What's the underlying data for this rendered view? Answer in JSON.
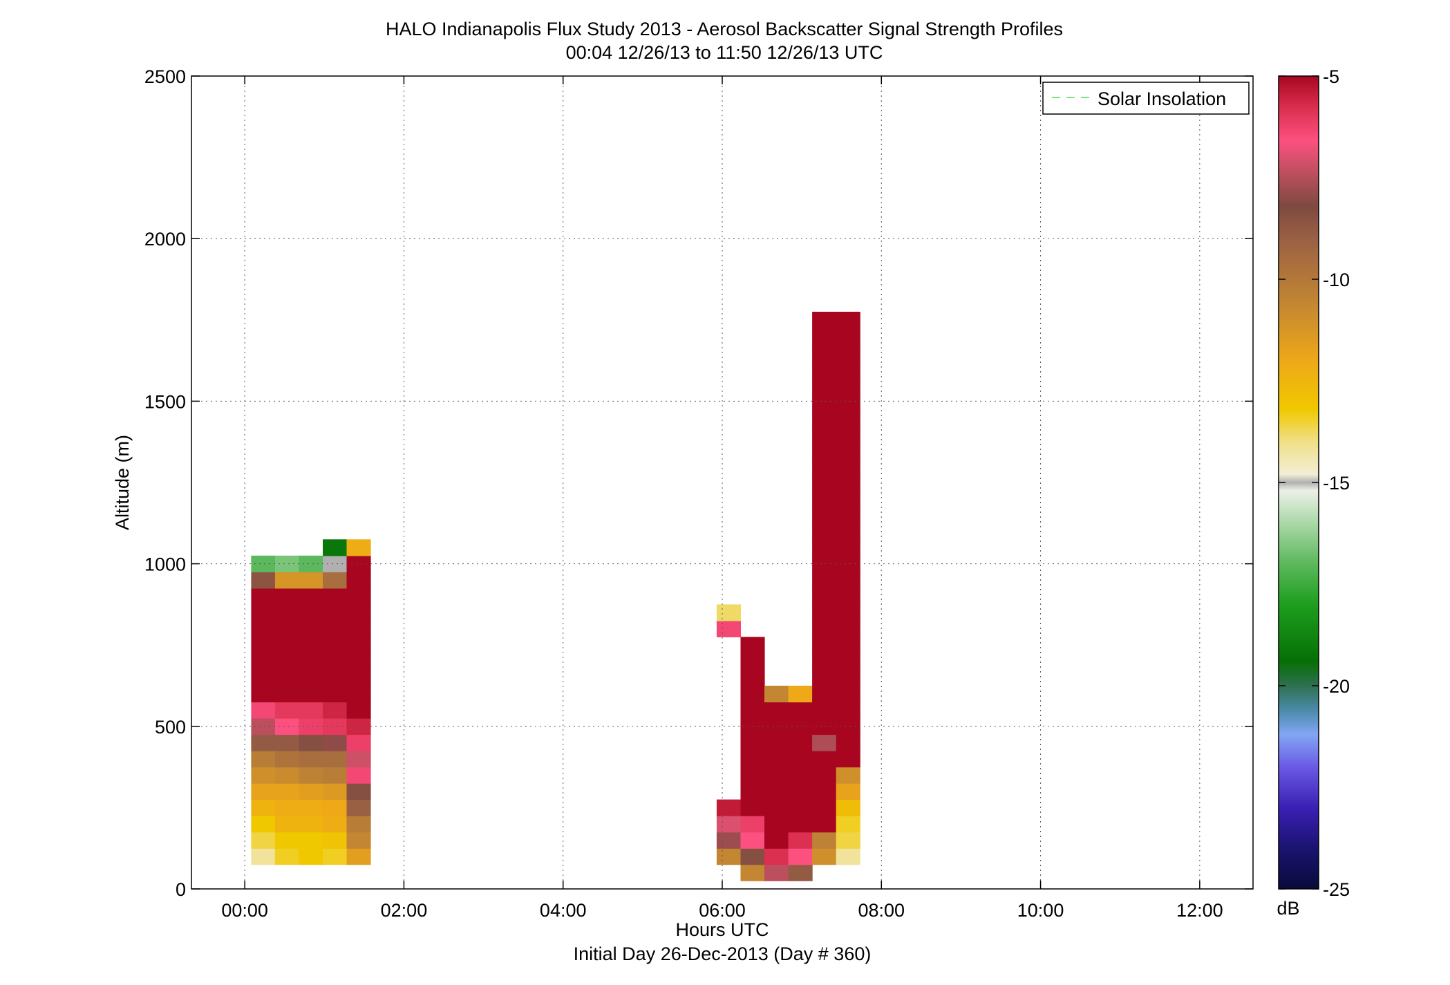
{
  "chart_data": {
    "type": "heatmap",
    "title": "HALO Indianapolis Flux Study 2013 - Aerosol Backscatter Signal Strength Profiles",
    "subtitle": "00:04 12/26/13 to 11:50 12/26/13  UTC",
    "xlabel": "Hours UTC",
    "xlabel2": "Initial Day 26-Dec-2013 (Day # 360)",
    "ylabel": "Altitude (m)",
    "xlim": [
      -0.67,
      12.67
    ],
    "ylim": [
      0,
      2500
    ],
    "x_ticks": [
      0,
      2,
      4,
      6,
      8,
      10,
      12
    ],
    "x_tick_labels": [
      "00:00",
      "02:00",
      "04:00",
      "06:00",
      "08:00",
      "10:00",
      "12:00"
    ],
    "y_ticks": [
      0,
      500,
      1000,
      1500,
      2000,
      2500
    ],
    "y_tick_labels": [
      "0",
      "500",
      "1000",
      "1500",
      "2000",
      "2500"
    ],
    "grid": true,
    "legend": {
      "placement": "top-right",
      "entries": [
        {
          "label": "Solar Insolation",
          "style": "dashed",
          "color": "#7fe27f"
        }
      ]
    },
    "colorbar": {
      "label": "dB",
      "range": [
        -25,
        -5
      ],
      "ticks": [
        -5,
        -10,
        -15,
        -20,
        -25
      ],
      "tick_labels": [
        "-5",
        "-10",
        "-15",
        "-20",
        "-25"
      ],
      "stops": [
        {
          "v": -25.0,
          "c": "#0a0a3a"
        },
        {
          "v": -24.0,
          "c": "#1a1470"
        },
        {
          "v": -23.0,
          "c": "#3a20b4"
        },
        {
          "v": -22.0,
          "c": "#6a5ae4"
        },
        {
          "v": -21.2,
          "c": "#82a6f4"
        },
        {
          "v": -20.6,
          "c": "#4a8aaa"
        },
        {
          "v": -20.0,
          "c": "#2e7050"
        },
        {
          "v": -19.4,
          "c": "#067006"
        },
        {
          "v": -18.0,
          "c": "#1e9e1e"
        },
        {
          "v": -17.0,
          "c": "#5cb85c"
        },
        {
          "v": -16.0,
          "c": "#aad8a8"
        },
        {
          "v": -15.2,
          "c": "#ecf0e6"
        },
        {
          "v": -15.0,
          "c": "#b0b0b0"
        },
        {
          "v": -14.8,
          "c": "#f2eed6"
        },
        {
          "v": -14.0,
          "c": "#f0e088"
        },
        {
          "v": -13.2,
          "c": "#f0c800"
        },
        {
          "v": -12.0,
          "c": "#eea818"
        },
        {
          "v": -10.5,
          "c": "#c08434"
        },
        {
          "v": -9.0,
          "c": "#9a6044"
        },
        {
          "v": -8.2,
          "c": "#7e4a40"
        },
        {
          "v": -7.2,
          "c": "#cc5066"
        },
        {
          "v": -6.6,
          "c": "#fc5080"
        },
        {
          "v": -5.8,
          "c": "#dc3050"
        },
        {
          "v": -5.0,
          "c": "#a80620"
        }
      ]
    },
    "cell_height_m": 50,
    "cell_width_h": 0.3,
    "columns": [
      {
        "t": 0.08,
        "z0": 75,
        "values": [
          -14.2,
          -13.6,
          -13.2,
          -12.4,
          -11.8,
          -11.0,
          -10.2,
          -8.8,
          -7.4,
          -6.4,
          -5,
          -5,
          -5,
          -5,
          -5,
          -5,
          -5,
          -8.6,
          -17.0
        ]
      },
      {
        "t": 0.38,
        "z0": 75,
        "values": [
          -13.4,
          -13.2,
          -12.4,
          -12.2,
          -11.8,
          -10.8,
          -9.8,
          -8.8,
          -6.6,
          -6.0,
          -5,
          -5,
          -5,
          -5,
          -5,
          -5,
          -5,
          -11.2,
          -16.6
        ]
      },
      {
        "t": 0.68,
        "z0": 75,
        "values": [
          -13.2,
          -13.2,
          -12.4,
          -12.2,
          -11.6,
          -10.4,
          -9.6,
          -8.4,
          -6.2,
          -6.0,
          -5,
          -5,
          -5,
          -5,
          -5,
          -5,
          -5,
          -11.2,
          -17.0
        ]
      },
      {
        "t": 0.98,
        "z0": 75,
        "values": [
          -13.4,
          -13.0,
          -12.2,
          -12.0,
          -11.4,
          -10.2,
          -9.6,
          -8.0,
          -6.0,
          -5.6,
          -5,
          -5,
          -5,
          -5,
          -5,
          -5,
          -5,
          -9.6,
          -15.0,
          -19.2
        ]
      },
      {
        "t": 1.28,
        "z0": 75,
        "values": [
          -11.6,
          -10.6,
          -10.2,
          -9.0,
          -8.4,
          -6.4,
          -7.2,
          -6.2,
          -5.6,
          -5,
          -5,
          -5,
          -5,
          -5,
          -5,
          -5,
          -5,
          -5,
          -5,
          -12.2
        ]
      },
      {
        "t": 5.93,
        "z0": 75,
        "values": [
          -10.6,
          -7.8,
          -7.0,
          -5.4,
          null,
          null,
          null,
          null,
          null,
          null,
          null,
          null,
          null,
          null,
          -6.4,
          -13.8
        ]
      },
      {
        "t": 6.23,
        "z0": 25,
        "values": [
          -10.6,
          -8.4,
          -6.6,
          -6.2,
          -5,
          -5,
          -5,
          -5,
          -5,
          -5,
          -5,
          -5,
          -5,
          -5,
          -5
        ]
      },
      {
        "t": 6.53,
        "z0": 25,
        "values": [
          -7.4,
          -5.8,
          -5,
          -5,
          -5,
          -5,
          -5,
          -5,
          -5,
          -5,
          -5,
          -10.6
        ]
      },
      {
        "t": 6.83,
        "z0": 25,
        "values": [
          -8.8,
          -6.6,
          -5.8,
          -5,
          -5,
          -5,
          -5,
          -5,
          -5,
          -5,
          -5,
          -12.0
        ]
      },
      {
        "t": 7.13,
        "z0": 75,
        "values": [
          -11.0,
          -10.4,
          -5,
          -5,
          -5,
          -5,
          -5,
          -7.6,
          -5,
          -5,
          -5,
          -5,
          -5,
          -5,
          -5,
          -5,
          -5,
          -5,
          -5,
          -5,
          -5,
          -5,
          -5,
          -5,
          -5,
          -5,
          -5,
          -5,
          -5,
          -5,
          -5,
          -5,
          -5,
          -5
        ]
      },
      {
        "t": 7.43,
        "z0": 75,
        "values": [
          -14.2,
          -13.6,
          -13.4,
          -12.8,
          -11.8,
          -11.0,
          -5,
          -5,
          -5,
          -5,
          -5,
          -5,
          -5,
          -5,
          -5,
          -5,
          -5,
          -5,
          -5,
          -5,
          -5,
          -5,
          -5,
          -5,
          -5,
          -5,
          -5,
          -5,
          -5,
          -5,
          -5,
          -5,
          -5,
          -5
        ]
      }
    ]
  }
}
